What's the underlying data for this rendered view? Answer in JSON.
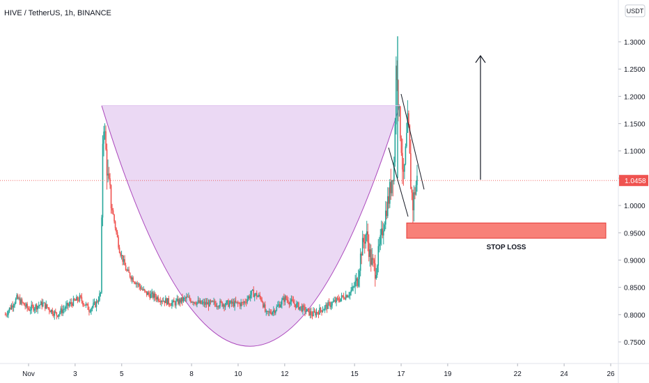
{
  "chart_data": {
    "type": "candlestick",
    "title": "HIVE / TetherUS, 1h, BINANCE",
    "currency_unit": "USDT",
    "current_price": "1.0458",
    "y_ticks": [
      "1.3000",
      "1.2500",
      "1.2000",
      "1.1500",
      "1.1000",
      "1.0500",
      "1.0000",
      "0.9500",
      "0.9000",
      "0.8500",
      "0.8000",
      "0.7500"
    ],
    "ylim": [
      0.72,
      1.33
    ],
    "x_ticks": [
      "Nov",
      "3",
      "5",
      "8",
      "10",
      "12",
      "15",
      "17",
      "19",
      "22",
      "24",
      "26"
    ],
    "x_tick_days": [
      1,
      3,
      5,
      8,
      10,
      12,
      15,
      17,
      19,
      22,
      24,
      26
    ],
    "xlim_days": [
      0,
      27
    ],
    "annotations": {
      "stop_loss_label": "STOP LOSS",
      "stop_loss_zone": [
        0.94,
        0.968
      ],
      "cup_top": 1.183,
      "cup_bottom": 0.742,
      "colors": {
        "up": "#26a69a",
        "down": "#ef5350",
        "cup_fill": "#e1c4ee",
        "cup_stroke": "#ab47bc",
        "stop_loss_fill": "#f88078",
        "price_line": "#ef5350"
      }
    },
    "price_path": [
      [
        0.0,
        0.8
      ],
      [
        0.5,
        0.83
      ],
      [
        1.0,
        0.81
      ],
      [
        1.6,
        0.82
      ],
      [
        2.2,
        0.8
      ],
      [
        2.8,
        0.82
      ],
      [
        3.2,
        0.83
      ],
      [
        3.6,
        0.81
      ],
      [
        3.9,
        0.82
      ],
      [
        4.1,
        0.84
      ],
      [
        4.2,
        1.17
      ],
      [
        4.4,
        1.05
      ],
      [
        4.6,
        0.99
      ],
      [
        4.9,
        0.92
      ],
      [
        5.2,
        0.88
      ],
      [
        5.6,
        0.86
      ],
      [
        6.0,
        0.84
      ],
      [
        6.6,
        0.83
      ],
      [
        7.2,
        0.82
      ],
      [
        7.8,
        0.83
      ],
      [
        8.4,
        0.82
      ],
      [
        9.0,
        0.82
      ],
      [
        9.6,
        0.82
      ],
      [
        10.2,
        0.82
      ],
      [
        10.6,
        0.84
      ],
      [
        11.0,
        0.83
      ],
      [
        11.2,
        0.8
      ],
      [
        11.6,
        0.81
      ],
      [
        12.0,
        0.83
      ],
      [
        12.4,
        0.82
      ],
      [
        12.8,
        0.81
      ],
      [
        13.2,
        0.8
      ],
      [
        13.6,
        0.81
      ],
      [
        14.0,
        0.82
      ],
      [
        14.4,
        0.83
      ],
      [
        14.8,
        0.84
      ],
      [
        15.1,
        0.86
      ],
      [
        15.3,
        0.92
      ],
      [
        15.5,
        0.95
      ],
      [
        15.7,
        0.9
      ],
      [
        15.9,
        0.88
      ],
      [
        16.1,
        0.93
      ],
      [
        16.3,
        0.98
      ],
      [
        16.5,
        1.02
      ],
      [
        16.7,
        1.08
      ],
      [
        16.8,
        1.28
      ],
      [
        16.9,
        1.17
      ],
      [
        17.0,
        1.12
      ],
      [
        17.1,
        1.04
      ],
      [
        17.2,
        1.1
      ],
      [
        17.3,
        1.16
      ],
      [
        17.4,
        1.05
      ],
      [
        17.5,
        1.0
      ],
      [
        17.6,
        1.03
      ],
      [
        17.7,
        1.05
      ]
    ]
  }
}
